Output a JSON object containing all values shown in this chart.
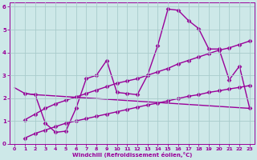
{
  "xlabel": "Windchill (Refroidissement éolien,°C)",
  "xlim": [
    -0.5,
    23.5
  ],
  "ylim": [
    0,
    6.2
  ],
  "xticks": [
    0,
    1,
    2,
    3,
    4,
    5,
    6,
    7,
    8,
    9,
    10,
    11,
    12,
    13,
    14,
    15,
    16,
    17,
    18,
    19,
    20,
    21,
    22,
    23
  ],
  "yticks": [
    0,
    1,
    2,
    3,
    4,
    5,
    6
  ],
  "bg_color": "#cde8e8",
  "line_color": "#990099",
  "grid_color": "#a8cccc",
  "series": [
    {
      "x": [
        1,
        2,
        3,
        4,
        5,
        6,
        7,
        8,
        9,
        10,
        11,
        12,
        13,
        14,
        15,
        16,
        17,
        18,
        19,
        20,
        21,
        22,
        23
      ],
      "y": [
        2.2,
        2.15,
        0.9,
        0.5,
        0.55,
        1.55,
        2.85,
        3.0,
        3.65,
        2.25,
        2.2,
        2.15,
        3.0,
        4.3,
        5.9,
        5.85,
        5.4,
        5.05,
        4.15,
        4.15,
        2.8,
        3.4,
        1.55
      ],
      "marker": "D",
      "markersize": 2.5,
      "linewidth": 1.0,
      "linestyle": "-"
    },
    {
      "x": [
        1,
        2,
        3,
        4,
        5,
        6,
        7,
        8,
        9,
        10,
        11,
        12,
        13,
        14,
        15,
        16,
        17,
        18,
        19,
        20,
        21,
        22,
        23
      ],
      "y": [
        1.05,
        1.3,
        1.55,
        1.75,
        1.9,
        2.05,
        2.2,
        2.35,
        2.5,
        2.65,
        2.75,
        2.85,
        3.0,
        3.15,
        3.3,
        3.5,
        3.65,
        3.8,
        3.95,
        4.1,
        4.2,
        4.35,
        4.5
      ],
      "marker": "D",
      "markersize": 2.5,
      "linewidth": 1.0,
      "linestyle": "-"
    },
    {
      "x": [
        1,
        2,
        3,
        4,
        5,
        6,
        7,
        8,
        9,
        10,
        11,
        12,
        13,
        14,
        15,
        16,
        17,
        18,
        19,
        20,
        21,
        22,
        23
      ],
      "y": [
        0.25,
        0.45,
        0.6,
        0.75,
        0.9,
        1.0,
        1.1,
        1.2,
        1.3,
        1.4,
        1.5,
        1.6,
        1.7,
        1.78,
        1.88,
        1.98,
        2.08,
        2.15,
        2.25,
        2.32,
        2.4,
        2.47,
        2.55
      ],
      "marker": "D",
      "markersize": 2.5,
      "linewidth": 1.0,
      "linestyle": "-"
    },
    {
      "x": [
        0,
        1,
        2,
        23
      ],
      "y": [
        2.45,
        2.2,
        2.15,
        1.55
      ],
      "marker": null,
      "markersize": 0,
      "linewidth": 1.0,
      "linestyle": "-"
    }
  ]
}
